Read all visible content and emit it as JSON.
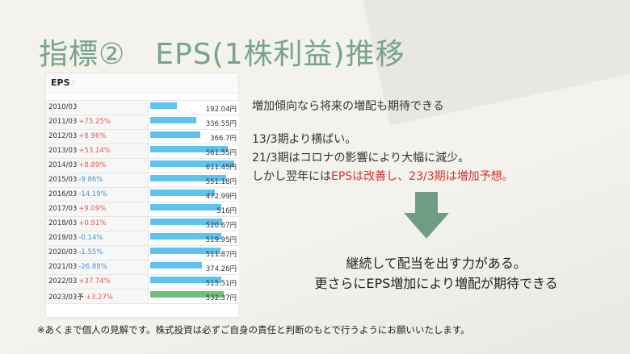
{
  "title": "指標②　EPS(1株利益)推移",
  "panel": {
    "header": "EPS",
    "header_icon": "?",
    "rows": [
      {
        "year": "2010/03",
        "change": "",
        "change_dir": "",
        "value": "192.04円",
        "eps": 192.04,
        "forecast": false
      },
      {
        "year": "2011/03",
        "change": "+75.25%",
        "change_dir": "pos",
        "value": "336.55円",
        "eps": 336.55,
        "forecast": false
      },
      {
        "year": "2012/03",
        "change": "+8.96%",
        "change_dir": "pos",
        "value": "366.7円",
        "eps": 366.7,
        "forecast": false
      },
      {
        "year": "2013/03",
        "change": "+53.14%",
        "change_dir": "pos",
        "value": "561.55円",
        "eps": 561.55,
        "forecast": false
      },
      {
        "year": "2014/03",
        "change": "+8.89%",
        "change_dir": "pos",
        "value": "611.45円",
        "eps": 611.45,
        "forecast": false
      },
      {
        "year": "2015/03",
        "change": "-9.86%",
        "change_dir": "neg",
        "value": "551.18円",
        "eps": 551.18,
        "forecast": false
      },
      {
        "year": "2016/03",
        "change": "-14.19%",
        "change_dir": "neg",
        "value": "472.99円",
        "eps": 472.99,
        "forecast": false
      },
      {
        "year": "2017/03",
        "change": "+9.09%",
        "change_dir": "pos",
        "value": "516円",
        "eps": 516,
        "forecast": false
      },
      {
        "year": "2018/03",
        "change": "+0.91%",
        "change_dir": "pos",
        "value": "520.67円",
        "eps": 520.67,
        "forecast": false
      },
      {
        "year": "2019/03",
        "change": "-0.14%",
        "change_dir": "neg",
        "value": "519.95円",
        "eps": 519.95,
        "forecast": false
      },
      {
        "year": "2020/03",
        "change": "-1.55%",
        "change_dir": "neg",
        "value": "511.87円",
        "eps": 511.87,
        "forecast": false
      },
      {
        "year": "2021/03",
        "change": "-26.88%",
        "change_dir": "neg",
        "value": "374.26円",
        "eps": 374.26,
        "forecast": false
      },
      {
        "year": "2022/03",
        "change": "+37.74%",
        "change_dir": "pos",
        "value": "515.51円",
        "eps": 515.51,
        "forecast": false
      },
      {
        "year": "2023/03予",
        "change": "+3.27%",
        "change_dir": "pos",
        "value": "532.37円",
        "eps": 532.37,
        "forecast": true
      }
    ],
    "bar_max": 611.45
  },
  "text": {
    "line1": "増加傾向なら将来の増配も期待できる",
    "line2": "13/3期より横ばい。",
    "line3": "21/3期はコロナの影響により大幅に減少。",
    "line4_prefix": "しかし翌年には",
    "line4_red": "EPSは改善し、23/3期は増加予想。"
  },
  "conclusion": {
    "line1": "継続して配当を出す力がある。",
    "line2": "更さらにEPS増加により増配が期待できる"
  },
  "disclaimer": "※あくまで個人の見解です。株式投資は必ずご自身の責任と判断のもとで行うようにお願いいたします。",
  "colors": {
    "title": "#79a38a",
    "bar": "#5fc3f0",
    "forecast_bar": "#6fc17a",
    "positive": "#e05a5a",
    "negative": "#4a8fd8",
    "highlight": "#d6322e",
    "arrow": "#6f9c83"
  }
}
